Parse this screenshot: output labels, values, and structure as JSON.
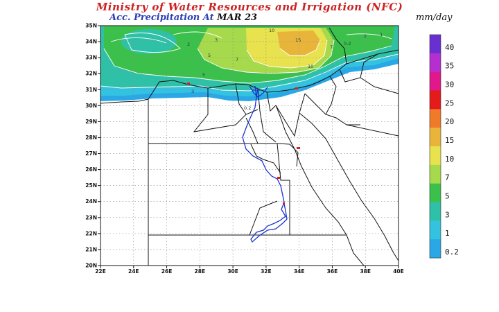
{
  "header": {
    "title": "Ministry of Water Resources and Irrigation (NFC)",
    "subtitle_prefix": "Acc. Precipitation  At",
    "subtitle_date": "MAR 23",
    "units": "mm/day"
  },
  "map": {
    "lat_labels": [
      "35N",
      "34N",
      "33N",
      "32N",
      "31N",
      "30N",
      "29N",
      "28N",
      "27N",
      "26N",
      "25N",
      "24N",
      "23N",
      "22N",
      "21N",
      "20N"
    ],
    "lon_labels": [
      "22E",
      "24E",
      "26E",
      "28E",
      "30E",
      "32E",
      "34E",
      "36E",
      "38E",
      "40E"
    ],
    "lat_range": [
      20,
      35
    ],
    "lon_range": [
      22,
      40
    ],
    "grid": true,
    "contour_labels": [
      "2",
      "3",
      "5",
      "7",
      "10",
      "15",
      "10",
      "7",
      "5",
      "3",
      "2",
      "0.2",
      "1",
      "0.2"
    ]
  },
  "legend": {
    "levels": [
      {
        "label": "40",
        "color": "#6a2fd1"
      },
      {
        "label": "35",
        "color": "#b52fd0"
      },
      {
        "label": "30",
        "color": "#e0188c"
      },
      {
        "label": "25",
        "color": "#e51b1b"
      },
      {
        "label": "20",
        "color": "#ef7a2a"
      },
      {
        "label": "15",
        "color": "#e8b53a"
      },
      {
        "label": "10",
        "color": "#e7e24e"
      },
      {
        "label": "7",
        "color": "#a6d94c"
      },
      {
        "label": "5",
        "color": "#3cc04c"
      },
      {
        "label": "3",
        "color": "#2fc1a8"
      },
      {
        "label": "1",
        "color": "#33c3e0"
      },
      {
        "label": "0.2",
        "color": "#2aa8e6"
      }
    ]
  }
}
